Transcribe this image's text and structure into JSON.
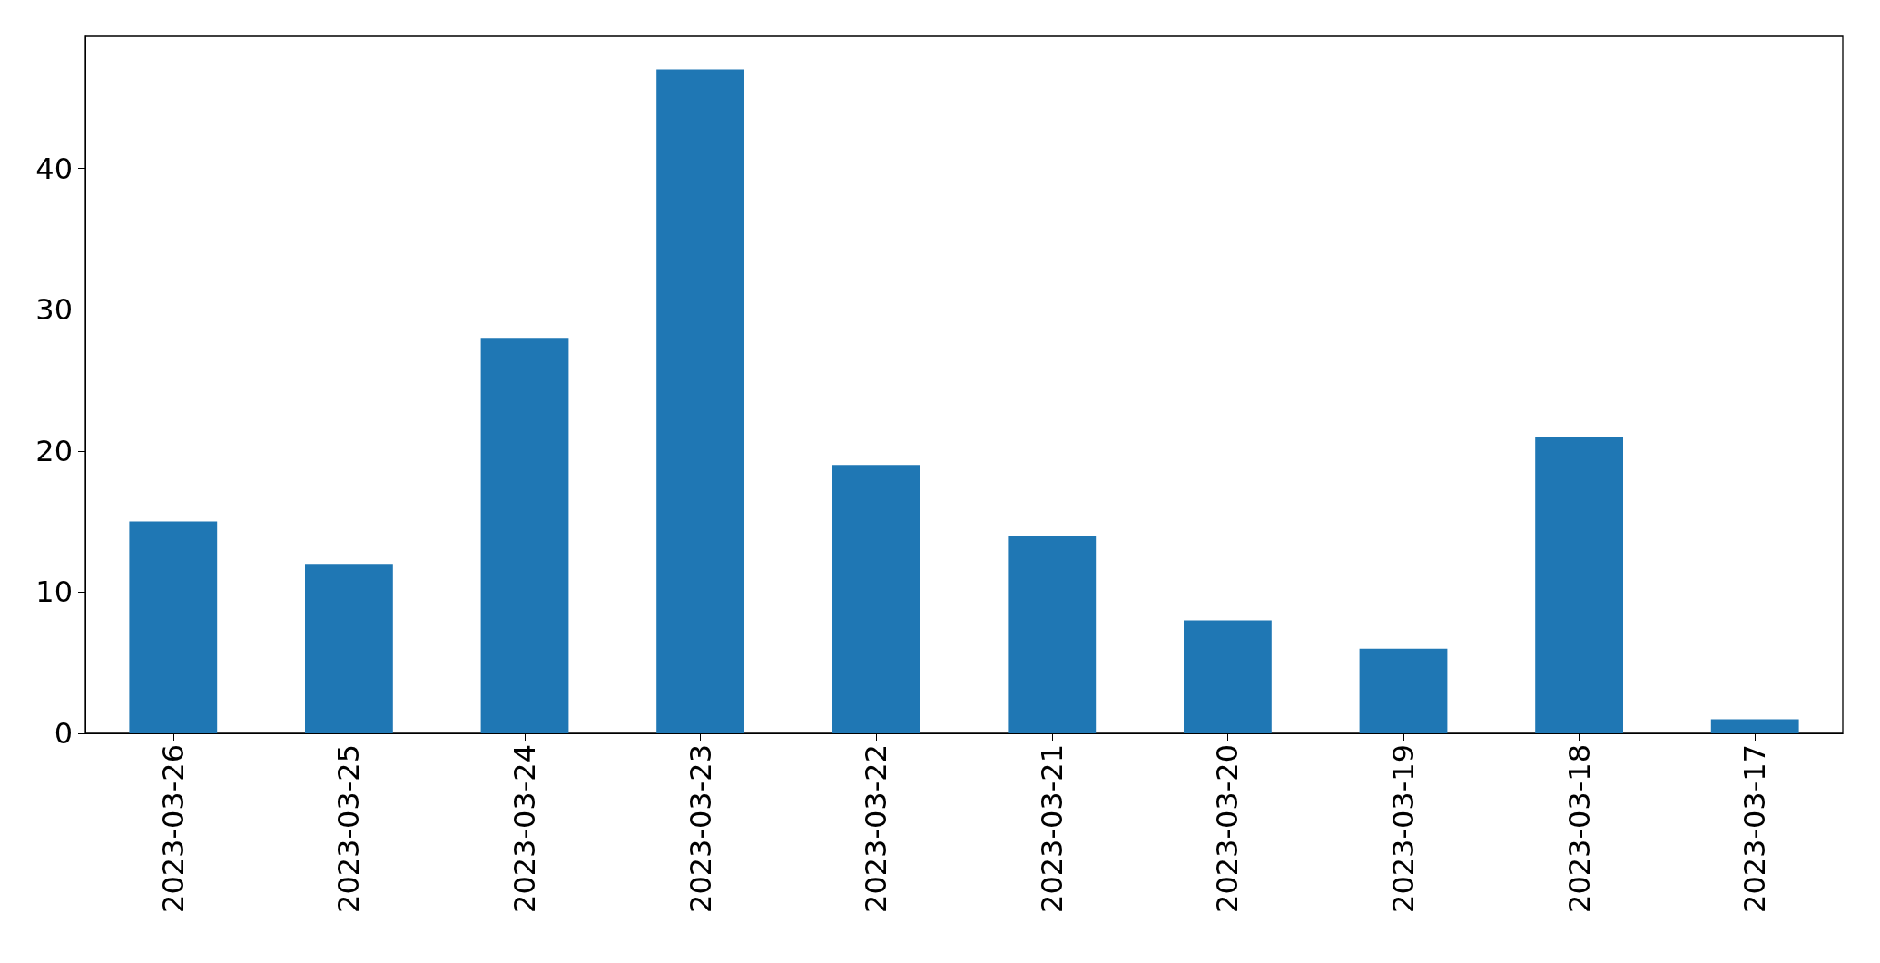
{
  "chart_data": {
    "type": "bar",
    "categories": [
      "2023-03-26",
      "2023-03-25",
      "2023-03-24",
      "2023-03-23",
      "2023-03-22",
      "2023-03-21",
      "2023-03-20",
      "2023-03-19",
      "2023-03-18",
      "2023-03-17"
    ],
    "values": [
      15,
      12,
      28,
      47,
      19,
      14,
      8,
      6,
      21,
      1
    ],
    "color": "#1f77b4",
    "ylim": [
      0,
      49.35
    ],
    "yticks": [
      0,
      10,
      20,
      30,
      40
    ],
    "grid": false
  }
}
